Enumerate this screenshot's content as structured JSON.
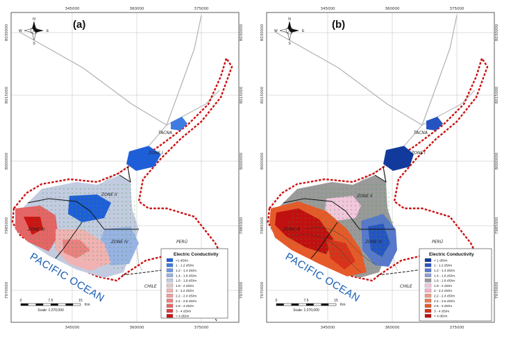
{
  "panels": [
    {
      "letter": "(a)",
      "x_ticks": [
        "345000",
        "360000",
        "375000"
      ],
      "y_ticks": [
        "8030000",
        "8015000",
        "8000000",
        "7985000",
        "7970000"
      ],
      "places": {
        "tacna": "TACNA",
        "zone1": "ZONE I",
        "zone2": "ZONE II",
        "zone3": "ZONE III",
        "zone4": "ZONE IV",
        "peru": "PERÚ",
        "chile": "CHILE"
      },
      "ocean": "PACIFIC OCEAN",
      "legend": {
        "title": "Electric Conductivity",
        "items": [
          {
            "label": "<1 dS/m",
            "color": "#1e5fd8"
          },
          {
            "label": "1 - 1.2 dS/m",
            "color": "#3f7be0"
          },
          {
            "label": "1.2 - 1.4 dS/m",
            "color": "#6a96e4"
          },
          {
            "label": "1.4 - 1.6 dS/m",
            "color": "#98b2e3"
          },
          {
            "label": "1.6 - 1.8 dS/m",
            "color": "#c2cbe0"
          },
          {
            "label": "1.8 - 2 dS/m",
            "color": "#e3c9cb"
          },
          {
            "label": "2 - 2.2 dS/m",
            "color": "#f0b2b2"
          },
          {
            "label": "2.2 - 2.4 dS/m",
            "color": "#ef9c9c"
          },
          {
            "label": "2.4 - 2.8 dS/m",
            "color": "#ea8181"
          },
          {
            "label": "2.8 - 3 dS/m",
            "color": "#e46565"
          },
          {
            "label": "3 - 4 dS/m",
            "color": "#dc3c3c"
          },
          {
            "label": "> 4 dS/m",
            "color": "#cc1414"
          }
        ]
      },
      "scale": {
        "labels": [
          "0",
          "7.5",
          "15"
        ],
        "unit": "Km",
        "text": "Scale: 1:270,000"
      },
      "compass": {
        "n": "N",
        "s": "S",
        "e": "E",
        "w": "W"
      }
    },
    {
      "letter": "(b)",
      "x_ticks": [
        "345000",
        "360000",
        "375000"
      ],
      "y_ticks": [
        "8030000",
        "8015000",
        "8000000",
        "7985000",
        "7970000"
      ],
      "places": {
        "tacna": "TACNA",
        "zone1": "ZONE I",
        "zone2": "ZONE II",
        "zone3": "ZONE III",
        "zone4": "ZONE IV",
        "peru": "PERÚ",
        "chile": "CHILE"
      },
      "ocean": "PACIFIC OCEAN",
      "legend": {
        "title": "Electric Conductivity",
        "items": [
          {
            "label": "< 1 dS/m",
            "color": "#123a9c"
          },
          {
            "label": "1 - 1.2 dS/m",
            "color": "#2554c2"
          },
          {
            "label": "1.2 - 1.4 dS/m",
            "color": "#5878cc"
          },
          {
            "label": "1.4 - 1.6 dS/m",
            "color": "#8e9fd6"
          },
          {
            "label": "1.6 - 1.8 dS/m",
            "color": "#9a9a9a"
          },
          {
            "label": "1.8 - 2 dS/m",
            "color": "#f2c6dc"
          },
          {
            "label": "2 - 2.2 dS/m",
            "color": "#f6b0c6"
          },
          {
            "label": "2.2 - 2.4 dS/m",
            "color": "#ef9a86"
          },
          {
            "label": "2.4 - 2.6 dS/m",
            "color": "#ec7b52"
          },
          {
            "label": "2.6 - 3 dS/m",
            "color": "#e65a2a"
          },
          {
            "label": "3 - 4 dS/m",
            "color": "#d8321a"
          },
          {
            "label": "> 4 dS/m",
            "color": "#c01010"
          }
        ]
      },
      "scale": {
        "labels": [
          "0",
          "7.5",
          "15"
        ],
        "unit": "Km",
        "text": "Scale: 1:270,000"
      },
      "compass": {
        "n": "N",
        "s": "S",
        "e": "E",
        "w": "W"
      }
    }
  ]
}
